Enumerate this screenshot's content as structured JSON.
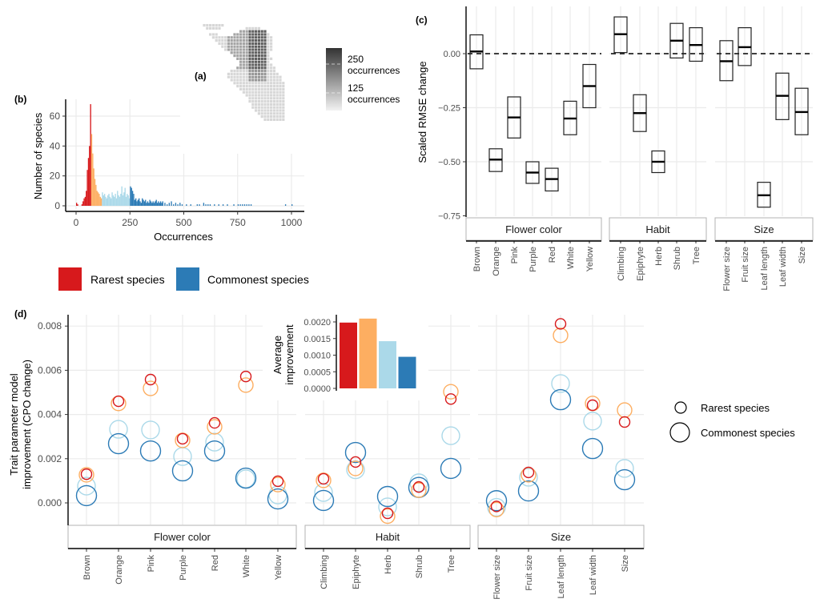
{
  "panels": {
    "a": {
      "label": "(a)",
      "legend": {
        "labels": [
          "250\noccurrences",
          "125\noccurrences"
        ],
        "high_label_1": "250",
        "high_label_2": "occurrences",
        "low_label_1": "125",
        "low_label_2": "occurrences"
      }
    },
    "b": {
      "label": "(b)"
    },
    "c": {
      "label": "(c)"
    },
    "d": {
      "label": "(d)"
    }
  },
  "group_legend": {
    "items": [
      {
        "label": "Rarest species",
        "color": "#d7191c"
      },
      {
        "label": "Commonest species",
        "color": "#2c7bb6"
      }
    ]
  },
  "size_legend": {
    "items": [
      {
        "label": "Rarest species",
        "size": "small"
      },
      {
        "label": "Commonest species",
        "size": "large"
      }
    ]
  },
  "colors": {
    "rarest": "#d7191c",
    "rare": "#fdae61",
    "common": "#abd9e9",
    "commonest": "#2c7bb6"
  },
  "chart_data": [
    {
      "id": "b",
      "type": "bar",
      "title": "",
      "xlabel": "Occurrences",
      "ylabel": "Number of species",
      "xlim": [
        0,
        1000
      ],
      "ylim": [
        0,
        68
      ],
      "xticks": [
        "0",
        "250",
        "500",
        "750",
        "1000"
      ],
      "yticks": [
        "0",
        "20",
        "40",
        "60"
      ],
      "grid": true,
      "bin_width": 5,
      "series": [
        {
          "name": "rarest",
          "color": "#d7191c",
          "x": [
            0,
            5,
            10,
            25,
            30,
            35,
            40,
            45,
            50,
            55,
            60,
            65
          ],
          "values": [
            2,
            1,
            0,
            1,
            3,
            5,
            6,
            10,
            24,
            32,
            40,
            68
          ]
        },
        {
          "name": "rare",
          "color": "#fdae61",
          "x": [
            70,
            75,
            80,
            85,
            90,
            95,
            100,
            105,
            110,
            115
          ],
          "values": [
            48,
            35,
            25,
            18,
            14,
            10,
            9,
            8,
            6,
            5
          ]
        },
        {
          "name": "common",
          "color": "#abd9e9",
          "x": [
            120,
            125,
            130,
            135,
            140,
            145,
            150,
            155,
            160,
            165,
            170,
            175,
            180,
            185,
            190,
            195,
            200,
            205,
            210,
            215,
            220,
            225,
            230,
            235,
            240,
            245
          ],
          "values": [
            9,
            7,
            8,
            6,
            5,
            7,
            8,
            6,
            5,
            9,
            7,
            6,
            8,
            5,
            10,
            7,
            6,
            8,
            13,
            7,
            9,
            12,
            6,
            8,
            7,
            5
          ]
        },
        {
          "name": "commonest",
          "color": "#2c7bb6",
          "x": [
            250,
            255,
            260,
            265,
            270,
            275,
            280,
            285,
            290,
            295,
            300,
            305,
            310,
            315,
            320,
            325,
            330,
            335,
            340,
            345,
            350,
            355,
            360,
            365,
            370,
            375,
            380,
            385,
            390,
            395,
            400,
            410,
            420,
            430,
            440,
            450,
            460,
            470,
            480,
            490,
            510,
            530,
            560,
            570,
            590,
            600,
            610,
            620,
            640,
            660,
            680,
            700,
            730,
            750,
            760,
            770,
            780,
            790,
            800,
            810,
            970,
            1000
          ],
          "values": [
            13,
            12,
            10,
            8,
            4,
            5,
            3,
            4,
            5,
            3,
            2,
            5,
            4,
            3,
            4,
            2,
            3,
            2,
            4,
            3,
            2,
            3,
            2,
            3,
            4,
            2,
            3,
            2,
            3,
            2,
            3,
            2,
            1,
            2,
            3,
            1,
            2,
            1,
            2,
            1,
            1,
            1,
            1,
            1,
            2,
            1,
            1,
            1,
            1,
            1,
            1,
            1,
            1,
            1,
            1,
            1,
            1,
            1,
            1,
            1,
            1,
            1
          ]
        }
      ]
    },
    {
      "id": "c",
      "type": "crossbar",
      "ylabel": "Scaled RMSE change",
      "ylim": [
        -0.75,
        0.2
      ],
      "yticks": [
        "0.00",
        "-0.25",
        "-0.50",
        "-0.75"
      ],
      "reference_line": 0,
      "facets": [
        {
          "name": "Flower color",
          "categories": [
            "Brown",
            "Orange",
            "Pink",
            "Purple",
            "Red",
            "White",
            "Yellow"
          ],
          "lower": [
            -0.07,
            -0.545,
            -0.39,
            -0.6,
            -0.635,
            -0.375,
            -0.25
          ],
          "median": [
            0.01,
            -0.49,
            -0.295,
            -0.55,
            -0.58,
            -0.3,
            -0.15
          ],
          "upper": [
            0.087,
            -0.44,
            -0.2,
            -0.5,
            -0.53,
            -0.22,
            -0.05
          ]
        },
        {
          "name": "Habit",
          "categories": [
            "Climbing",
            "Epiphyte",
            "Herb",
            "Shrub",
            "Tree"
          ],
          "lower": [
            0.005,
            -0.36,
            -0.55,
            -0.02,
            -0.035
          ],
          "median": [
            0.09,
            -0.275,
            -0.5,
            0.06,
            0.04
          ],
          "upper": [
            0.17,
            -0.19,
            -0.45,
            0.14,
            0.12
          ]
        },
        {
          "name": "Size",
          "categories": [
            "Flower size",
            "Fruit size",
            "Leaf length",
            "Leaf width",
            "Size"
          ],
          "lower": [
            -0.125,
            -0.055,
            -0.71,
            -0.305,
            -0.375
          ],
          "median": [
            -0.035,
            0.03,
            -0.655,
            -0.195,
            -0.27
          ],
          "upper": [
            0.06,
            0.12,
            -0.595,
            -0.09,
            -0.16
          ]
        }
      ]
    },
    {
      "id": "d",
      "type": "scatter",
      "ylabel": "Trait parameter model improvement (CPO change)",
      "ylabel_line1": "Trait parameter model",
      "ylabel_line2": "improvement (CPO change)",
      "ylim": [
        -0.001,
        0.0085
      ],
      "yticks": [
        "0.000",
        "0.002",
        "0.004",
        "0.006",
        "0.008"
      ],
      "series_names": [
        "rarest",
        "rare",
        "common",
        "commonest"
      ],
      "facets": [
        {
          "name": "Flower color",
          "categories": [
            "Brown",
            "Orange",
            "Pink",
            "Purple",
            "Red",
            "White",
            "Yellow"
          ],
          "rarest": [
            0.0013,
            0.0046,
            0.00558,
            0.0029,
            0.00362,
            0.00572,
            0.00098
          ],
          "rare": [
            0.00127,
            0.0045,
            0.00518,
            0.00283,
            0.00344,
            0.00533,
            0.00083
          ],
          "common": [
            0.00076,
            0.00333,
            0.0033,
            0.0021,
            0.00275,
            0.00109,
            0.00036
          ],
          "commonest": [
            0.00033,
            0.00268,
            0.00235,
            0.00145,
            0.00235,
            0.00112,
            0.00018
          ]
        },
        {
          "name": "Habit",
          "categories": [
            "Climbing",
            "Epiphyte",
            "Herb",
            "Shrub",
            "Tree"
          ],
          "rarest": [
            0.00109,
            0.00185,
            -0.00047,
            0.00072,
            0.0047
          ],
          "rare": [
            0.00102,
            0.00156,
            -0.0006,
            0.00058,
            0.00503
          ],
          "common": [
            0.00047,
            0.0015,
            -0.00018,
            0.00091,
            0.00304
          ],
          "commonest": [
            0.00011,
            0.00228,
            0.00029,
            0.0007,
            0.00156
          ]
        },
        {
          "name": "Size",
          "categories": [
            "Flower size",
            "Fruit size",
            "Leaf length",
            "Leaf width",
            "Size"
          ],
          "rarest": [
            -0.00016,
            0.00138,
            0.0081,
            0.00442,
            0.00366
          ],
          "rare": [
            -0.0003,
            0.00127,
            0.00758,
            0.0045,
            0.0042
          ],
          "common": [
            -0.0002,
            0.00116,
            0.0054,
            0.0037,
            0.00156
          ],
          "commonest": [
            0.0001,
            0.00054,
            0.00467,
            0.00246,
            0.00105
          ]
        }
      ],
      "inset": {
        "type": "bar",
        "ylabel": "Average improvement",
        "ylabel_line1": "Average",
        "ylabel_line2": "improvement",
        "yticks": [
          "0.0000",
          "0.0005",
          "0.0010",
          "0.0015",
          "0.0020"
        ],
        "ylim": [
          0,
          0.0021
        ],
        "categories": [
          "rarest",
          "rare",
          "common",
          "commonest"
        ],
        "values": [
          0.00198,
          0.0021,
          0.00142,
          0.00095
        ]
      }
    }
  ]
}
